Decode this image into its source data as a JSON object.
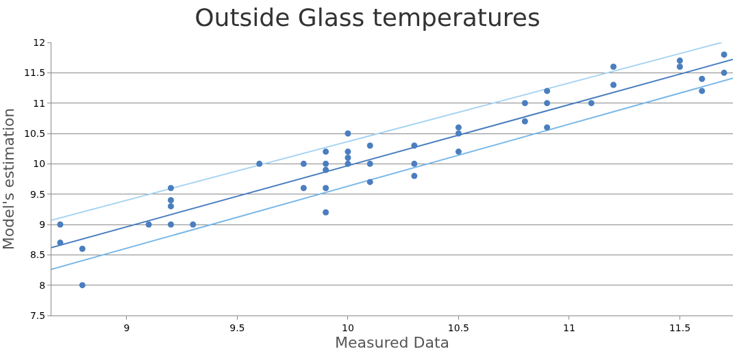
{
  "chart_data": {
    "type": "scatter",
    "title": "Outside Glass temperatures",
    "xlabel": "Measured Data",
    "ylabel": "Model's estimation",
    "xlim": [
      8.66,
      11.74
    ],
    "xticks": [
      9,
      9.5,
      10,
      10.5,
      11,
      11.5
    ],
    "ylim": [
      7.5,
      12
    ],
    "yticks": [
      7.5,
      8,
      8.5,
      9,
      9.5,
      10,
      10.5,
      11,
      11.5,
      12
    ],
    "grid": "y",
    "series": [
      {
        "type": "line",
        "color": "#a8d4f2",
        "x": [
          8.66,
          11.69
        ],
        "values": [
          9.07,
          12.0
        ]
      },
      {
        "type": "line",
        "color": "#7ab8e8",
        "x": [
          8.66,
          11.74
        ],
        "values": [
          8.26,
          11.41
        ]
      },
      {
        "type": "line",
        "color": "#4a7ebf",
        "x": [
          8.66,
          11.74
        ],
        "values": [
          8.62,
          11.72
        ]
      },
      {
        "color": "#4a7ebf",
        "marker": "circle",
        "x": [
          8.7,
          8.7,
          8.8,
          8.8,
          9.1,
          9.2,
          9.2,
          9.2,
          9.2,
          9.3,
          9.6,
          9.8,
          9.8,
          9.9,
          9.9,
          9.9,
          9.9,
          9.9,
          10.0,
          10.0,
          10.0,
          10.0,
          10.1,
          10.1,
          10.1,
          10.3,
          10.3,
          10.3,
          10.5,
          10.5,
          10.5,
          10.8,
          10.8,
          10.9,
          10.9,
          10.9,
          11.1,
          11.2,
          11.2,
          11.5,
          11.5,
          11.6,
          11.6,
          11.7,
          11.7
        ],
        "values": [
          9.0,
          8.7,
          8.6,
          8.0,
          9.0,
          9.6,
          9.4,
          9.3,
          9.0,
          9.0,
          10.0,
          10.0,
          9.6,
          10.2,
          10.0,
          9.9,
          9.6,
          9.2,
          10.5,
          10.2,
          10.1,
          10.0,
          10.3,
          10.0,
          9.7,
          10.3,
          10.0,
          9.8,
          10.6,
          10.5,
          10.2,
          11.0,
          10.7,
          11.2,
          11.0,
          10.6,
          11.0,
          11.6,
          11.3,
          11.7,
          11.6,
          11.4,
          11.2,
          11.8,
          11.5
        ]
      }
    ]
  }
}
